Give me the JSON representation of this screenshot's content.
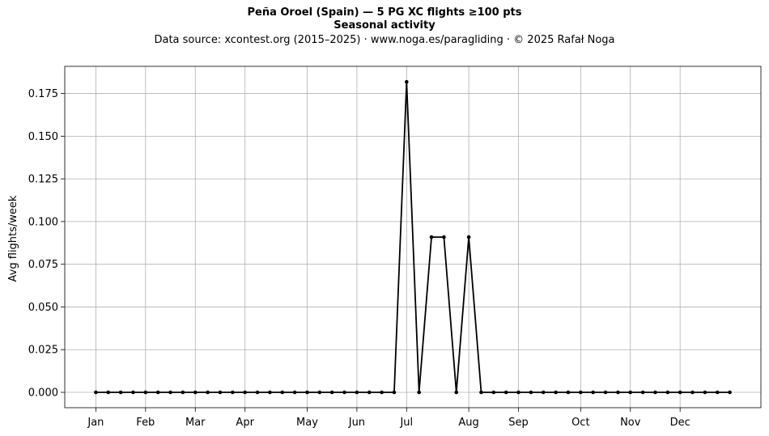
{
  "chart_data": {
    "type": "line",
    "title": "Peña Oroel (Spain)  —  5 PG XC flights ≥100 pts",
    "subtitle": "Seasonal activity",
    "source_line": "Data source: xcontest.org (2015–2025)  ·  www.noga.es/paragliding  ·  © 2025 Rafał Noga",
    "xlabel": "",
    "ylabel": "Avg flights/week",
    "x_unit": "week of year",
    "x_range": [
      -1.5,
      54.5
    ],
    "ylim": [
      -0.009,
      0.1909
    ],
    "y_ticks": [
      0.0,
      0.025,
      0.05,
      0.075,
      0.1,
      0.125,
      0.15,
      0.175
    ],
    "y_tick_labels": [
      "0.000",
      "0.025",
      "0.050",
      "0.075",
      "0.100",
      "0.125",
      "0.150",
      "0.175"
    ],
    "x_ticks": [
      {
        "label": "Jan",
        "week": 1
      },
      {
        "label": "Feb",
        "week": 5
      },
      {
        "label": "Mar",
        "week": 9
      },
      {
        "label": "Apr",
        "week": 13
      },
      {
        "label": "May",
        "week": 18
      },
      {
        "label": "Jun",
        "week": 22
      },
      {
        "label": "Jul",
        "week": 26
      },
      {
        "label": "Aug",
        "week": 31
      },
      {
        "label": "Sep",
        "week": 35
      },
      {
        "label": "Oct",
        "week": 40
      },
      {
        "label": "Nov",
        "week": 44
      },
      {
        "label": "Dec",
        "week": 48
      }
    ],
    "grid": true,
    "line_color": "#000000",
    "grid_color": "#b0b0b0",
    "series": [
      {
        "x": [
          1,
          2,
          3,
          4,
          5,
          6,
          7,
          8,
          9,
          10,
          11,
          12,
          13,
          14,
          15,
          16,
          17,
          18,
          19,
          20,
          21,
          22,
          23,
          24,
          25,
          26,
          27,
          28,
          29,
          30,
          31,
          32,
          33,
          34,
          35,
          36,
          37,
          38,
          39,
          40,
          41,
          42,
          43,
          44,
          45,
          46,
          47,
          48,
          49,
          50,
          51,
          52
        ],
        "values": [
          0,
          0,
          0,
          0,
          0,
          0,
          0,
          0,
          0,
          0,
          0,
          0,
          0,
          0,
          0,
          0,
          0,
          0,
          0,
          0,
          0,
          0,
          0,
          0,
          0,
          0.1818,
          0,
          0.0909,
          0.0909,
          0,
          0.0909,
          0,
          0,
          0,
          0,
          0,
          0,
          0,
          0,
          0,
          0,
          0,
          0,
          0,
          0,
          0,
          0,
          0,
          0,
          0,
          0,
          0
        ]
      }
    ]
  }
}
